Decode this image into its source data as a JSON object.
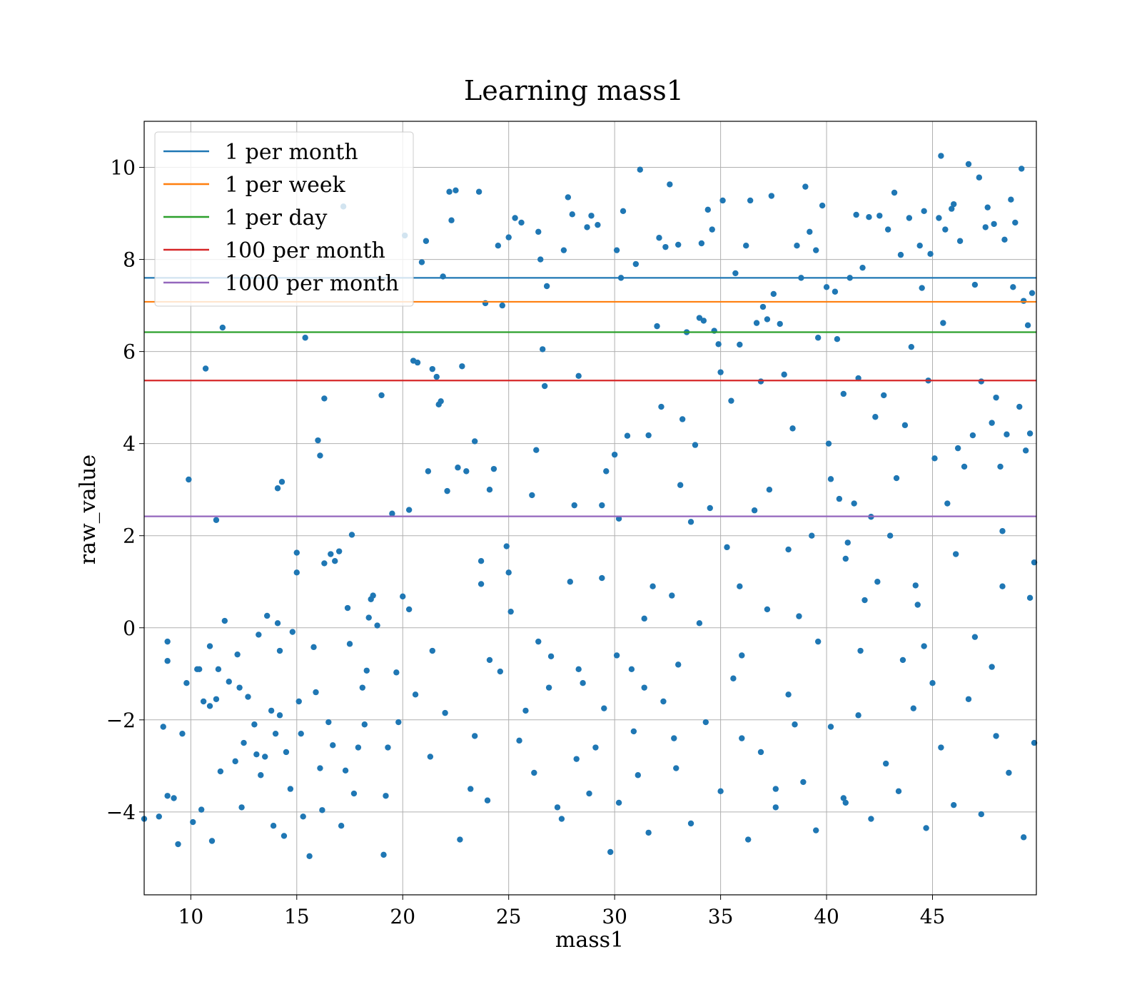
{
  "chart_data": {
    "type": "scatter",
    "title": "Learning mass1",
    "xlabel": "mass1",
    "ylabel": "raw_value",
    "xlim": [
      7.8,
      49.9
    ],
    "ylim": [
      -5.8,
      11.0
    ],
    "xticks": [
      10,
      15,
      20,
      25,
      30,
      35,
      40,
      45
    ],
    "yticks": [
      -4,
      -2,
      0,
      2,
      4,
      6,
      8,
      10
    ],
    "ytick_labels": [
      "−4",
      "−2",
      "0",
      "2",
      "4",
      "6",
      "8",
      "10"
    ],
    "grid": true,
    "legend_position": "upper-left",
    "scatter_color": "#1f77b4",
    "hlines": [
      {
        "name": "1 per month",
        "value": 7.6,
        "color": "#1f77b4"
      },
      {
        "name": "1 per week",
        "value": 7.08,
        "color": "#ff7f0e"
      },
      {
        "name": "1 per day",
        "value": 6.42,
        "color": "#2ca02c"
      },
      {
        "name": "100 per month",
        "value": 5.37,
        "color": "#d62728"
      },
      {
        "name": "1000 per month",
        "value": 2.42,
        "color": "#9467bd"
      }
    ],
    "points": [
      [
        7.8,
        -4.15
      ],
      [
        8.5,
        -4.1
      ],
      [
        8.7,
        -2.15
      ],
      [
        8.9,
        -0.3
      ],
      [
        8.9,
        -0.72
      ],
      [
        8.9,
        -3.65
      ],
      [
        9.2,
        -3.7
      ],
      [
        9.4,
        -4.7
      ],
      [
        9.6,
        -2.3
      ],
      [
        9.8,
        -1.2
      ],
      [
        9.9,
        3.22
      ],
      [
        10.1,
        -4.22
      ],
      [
        10.4,
        -0.9
      ],
      [
        10.5,
        -3.95
      ],
      [
        10.6,
        -1.6
      ],
      [
        10.7,
        5.63
      ],
      [
        10.9,
        -0.4
      ],
      [
        10.9,
        -1.7
      ],
      [
        11.0,
        -4.63
      ],
      [
        11.2,
        2.34
      ],
      [
        11.3,
        -0.9
      ],
      [
        11.4,
        -3.12
      ],
      [
        11.5,
        6.52
      ],
      [
        11.6,
        0.15
      ],
      [
        11.8,
        -1.17
      ],
      [
        12.1,
        -2.9
      ],
      [
        12.2,
        -0.58
      ],
      [
        12.4,
        -3.9
      ],
      [
        12.5,
        -2.5
      ],
      [
        12.7,
        -1.5
      ],
      [
        13.0,
        -2.1
      ],
      [
        13.2,
        -0.15
      ],
      [
        13.3,
        -3.2
      ],
      [
        13.5,
        -2.8
      ],
      [
        13.6,
        0.26
      ],
      [
        13.8,
        -1.8
      ],
      [
        13.9,
        -4.3
      ],
      [
        14.0,
        -2.3
      ],
      [
        14.1,
        3.03
      ],
      [
        14.2,
        -0.5
      ],
      [
        14.3,
        3.17
      ],
      [
        14.4,
        -4.52
      ],
      [
        14.5,
        -2.7
      ],
      [
        14.7,
        -3.5
      ],
      [
        14.8,
        -0.09
      ],
      [
        15.0,
        1.63
      ],
      [
        15.0,
        1.2
      ],
      [
        15.1,
        -1.6
      ],
      [
        15.3,
        -4.1
      ],
      [
        15.4,
        6.3
      ],
      [
        15.6,
        -4.96
      ],
      [
        15.8,
        -0.42
      ],
      [
        15.9,
        -1.4
      ],
      [
        16.0,
        4.07
      ],
      [
        16.1,
        3.74
      ],
      [
        16.2,
        -3.96
      ],
      [
        16.3,
        4.98
      ],
      [
        16.5,
        -2.05
      ],
      [
        16.6,
        1.6
      ],
      [
        16.8,
        1.45
      ],
      [
        17.0,
        1.66
      ],
      [
        17.1,
        -4.3
      ],
      [
        17.2,
        9.15
      ],
      [
        17.4,
        0.43
      ],
      [
        17.5,
        -0.35
      ],
      [
        17.6,
        2.02
      ],
      [
        17.7,
        -3.6
      ],
      [
        17.9,
        -2.6
      ],
      [
        18.1,
        -1.3
      ],
      [
        18.3,
        -0.93
      ],
      [
        18.4,
        0.22
      ],
      [
        18.6,
        0.7
      ],
      [
        18.8,
        0.05
      ],
      [
        19.0,
        5.05
      ],
      [
        19.1,
        -4.93
      ],
      [
        19.3,
        -2.6
      ],
      [
        19.5,
        2.48
      ],
      [
        19.7,
        -0.97
      ],
      [
        20.0,
        0.68
      ],
      [
        20.1,
        8.52
      ],
      [
        20.3,
        0.4
      ],
      [
        20.3,
        2.56
      ],
      [
        20.5,
        5.8
      ],
      [
        20.7,
        5.76
      ],
      [
        20.9,
        7.94
      ],
      [
        21.1,
        8.4
      ],
      [
        21.2,
        3.4
      ],
      [
        21.4,
        5.62
      ],
      [
        21.6,
        5.45
      ],
      [
        21.7,
        4.85
      ],
      [
        21.8,
        4.92
      ],
      [
        21.9,
        7.63
      ],
      [
        22.1,
        2.97
      ],
      [
        22.2,
        9.47
      ],
      [
        22.3,
        8.85
      ],
      [
        22.5,
        9.5
      ],
      [
        22.6,
        3.48
      ],
      [
        22.8,
        5.68
      ],
      [
        23.0,
        3.4
      ],
      [
        23.2,
        -3.5
      ],
      [
        23.4,
        4.05
      ],
      [
        23.6,
        9.47
      ],
      [
        23.7,
        1.45
      ],
      [
        23.9,
        7.05
      ],
      [
        24.1,
        3.0
      ],
      [
        24.3,
        3.45
      ],
      [
        24.5,
        8.3
      ],
      [
        24.7,
        7.0
      ],
      [
        24.9,
        1.77
      ],
      [
        25.0,
        8.48
      ],
      [
        25.1,
        0.35
      ],
      [
        25.3,
        8.9
      ],
      [
        25.6,
        8.8
      ],
      [
        25.8,
        -1.8
      ],
      [
        26.1,
        2.88
      ],
      [
        26.3,
        3.86
      ],
      [
        26.4,
        8.6
      ],
      [
        26.5,
        8.0
      ],
      [
        26.6,
        6.05
      ],
      [
        26.7,
        5.25
      ],
      [
        26.8,
        7.42
      ],
      [
        27.0,
        -0.62
      ],
      [
        27.3,
        -3.9
      ],
      [
        27.6,
        8.2
      ],
      [
        27.8,
        9.35
      ],
      [
        28.0,
        8.98
      ],
      [
        28.1,
        2.66
      ],
      [
        28.3,
        5.47
      ],
      [
        28.5,
        -1.2
      ],
      [
        28.7,
        8.7
      ],
      [
        28.9,
        8.95
      ],
      [
        29.1,
        -2.6
      ],
      [
        29.2,
        8.75
      ],
      [
        29.4,
        2.66
      ],
      [
        29.6,
        3.4
      ],
      [
        29.8,
        -4.87
      ],
      [
        30.0,
        3.76
      ],
      [
        30.1,
        8.2
      ],
      [
        30.2,
        2.37
      ],
      [
        30.3,
        7.6
      ],
      [
        30.4,
        9.05
      ],
      [
        30.6,
        4.17
      ],
      [
        30.8,
        -0.9
      ],
      [
        31.0,
        7.9
      ],
      [
        31.1,
        -3.2
      ],
      [
        31.2,
        9.95
      ],
      [
        31.4,
        -1.3
      ],
      [
        31.6,
        4.18
      ],
      [
        31.8,
        0.9
      ],
      [
        32.0,
        6.55
      ],
      [
        32.1,
        8.47
      ],
      [
        32.2,
        4.8
      ],
      [
        32.4,
        8.27
      ],
      [
        32.6,
        9.63
      ],
      [
        32.8,
        -2.4
      ],
      [
        33.0,
        8.32
      ],
      [
        33.1,
        3.1
      ],
      [
        33.2,
        4.53
      ],
      [
        33.4,
        6.42
      ],
      [
        33.6,
        2.3
      ],
      [
        33.8,
        3.97
      ],
      [
        34.0,
        6.73
      ],
      [
        34.1,
        8.35
      ],
      [
        34.2,
        6.67
      ],
      [
        34.4,
        9.08
      ],
      [
        34.5,
        2.6
      ],
      [
        34.6,
        8.65
      ],
      [
        34.7,
        6.45
      ],
      [
        34.9,
        6.16
      ],
      [
        35.0,
        5.55
      ],
      [
        35.1,
        9.28
      ],
      [
        35.3,
        1.75
      ],
      [
        35.5,
        4.93
      ],
      [
        35.7,
        7.7
      ],
      [
        35.9,
        6.15
      ],
      [
        36.0,
        -2.4
      ],
      [
        36.2,
        8.3
      ],
      [
        36.4,
        9.28
      ],
      [
        36.6,
        2.55
      ],
      [
        36.7,
        6.62
      ],
      [
        36.9,
        5.35
      ],
      [
        37.0,
        6.97
      ],
      [
        37.2,
        6.7
      ],
      [
        37.3,
        3.0
      ],
      [
        37.4,
        9.38
      ],
      [
        37.5,
        7.25
      ],
      [
        37.6,
        -3.5
      ],
      [
        37.8,
        6.6
      ],
      [
        38.0,
        5.5
      ],
      [
        38.2,
        1.7
      ],
      [
        38.4,
        4.33
      ],
      [
        38.5,
        -2.1
      ],
      [
        38.6,
        8.3
      ],
      [
        38.8,
        7.6
      ],
      [
        39.0,
        9.58
      ],
      [
        39.2,
        8.6
      ],
      [
        39.3,
        2.0
      ],
      [
        39.5,
        8.2
      ],
      [
        39.6,
        6.3
      ],
      [
        39.8,
        9.17
      ],
      [
        40.0,
        7.4
      ],
      [
        40.1,
        4.0
      ],
      [
        40.2,
        3.23
      ],
      [
        40.4,
        7.3
      ],
      [
        40.5,
        6.27
      ],
      [
        40.6,
        2.8
      ],
      [
        40.8,
        5.08
      ],
      [
        40.9,
        -3.8
      ],
      [
        41.0,
        1.85
      ],
      [
        41.1,
        7.6
      ],
      [
        41.3,
        2.7
      ],
      [
        41.4,
        8.97
      ],
      [
        41.5,
        5.42
      ],
      [
        41.7,
        7.82
      ],
      [
        41.8,
        0.6
      ],
      [
        42.0,
        8.92
      ],
      [
        42.1,
        2.41
      ],
      [
        42.3,
        4.58
      ],
      [
        42.5,
        8.95
      ],
      [
        42.7,
        5.05
      ],
      [
        42.9,
        8.65
      ],
      [
        43.0,
        2.0
      ],
      [
        43.2,
        9.45
      ],
      [
        43.3,
        3.25
      ],
      [
        43.5,
        8.1
      ],
      [
        43.7,
        4.4
      ],
      [
        43.9,
        8.9
      ],
      [
        44.0,
        6.1
      ],
      [
        44.2,
        0.92
      ],
      [
        44.4,
        8.3
      ],
      [
        44.5,
        7.38
      ],
      [
        44.6,
        9.05
      ],
      [
        44.8,
        5.37
      ],
      [
        44.9,
        8.12
      ],
      [
        45.1,
        3.68
      ],
      [
        45.3,
        8.9
      ],
      [
        45.4,
        10.25
      ],
      [
        45.5,
        6.62
      ],
      [
        45.6,
        8.65
      ],
      [
        45.7,
        2.7
      ],
      [
        45.9,
        9.1
      ],
      [
        46.0,
        9.2
      ],
      [
        46.2,
        3.9
      ],
      [
        46.3,
        8.4
      ],
      [
        46.5,
        3.5
      ],
      [
        46.7,
        10.07
      ],
      [
        46.9,
        4.18
      ],
      [
        47.0,
        7.45
      ],
      [
        47.2,
        9.78
      ],
      [
        47.3,
        5.35
      ],
      [
        47.5,
        8.7
      ],
      [
        47.6,
        9.13
      ],
      [
        47.8,
        4.45
      ],
      [
        47.9,
        8.77
      ],
      [
        48.0,
        5.0
      ],
      [
        48.2,
        3.5
      ],
      [
        48.3,
        2.1
      ],
      [
        48.4,
        8.43
      ],
      [
        48.5,
        4.2
      ],
      [
        48.7,
        9.3
      ],
      [
        48.8,
        7.4
      ],
      [
        48.9,
        8.8
      ],
      [
        49.1,
        4.8
      ],
      [
        49.2,
        9.97
      ],
      [
        49.3,
        7.1
      ],
      [
        49.4,
        3.85
      ],
      [
        49.5,
        6.57
      ],
      [
        49.6,
        4.22
      ],
      [
        49.7,
        7.27
      ],
      [
        49.8,
        1.42
      ],
      [
        10.3,
        -0.9
      ],
      [
        11.2,
        -1.55
      ],
      [
        12.3,
        -1.3
      ],
      [
        13.1,
        -2.75
      ],
      [
        14.2,
        -1.9
      ],
      [
        15.2,
        -2.3
      ],
      [
        16.1,
        -3.05
      ],
      [
        16.7,
        -2.55
      ],
      [
        17.3,
        -3.1
      ],
      [
        18.2,
        -2.1
      ],
      [
        19.2,
        -3.65
      ],
      [
        19.8,
        -2.05
      ],
      [
        20.6,
        -1.45
      ],
      [
        21.3,
        -2.8
      ],
      [
        22.0,
        -1.85
      ],
      [
        22.7,
        -4.6
      ],
      [
        23.4,
        -2.35
      ],
      [
        24.0,
        -3.75
      ],
      [
        24.6,
        -0.95
      ],
      [
        25.5,
        -2.45
      ],
      [
        26.2,
        -3.15
      ],
      [
        26.9,
        -1.3
      ],
      [
        27.5,
        -4.15
      ],
      [
        28.2,
        -2.85
      ],
      [
        28.8,
        -3.6
      ],
      [
        29.5,
        -1.75
      ],
      [
        30.2,
        -3.8
      ],
      [
        30.9,
        -2.25
      ],
      [
        31.6,
        -4.45
      ],
      [
        32.3,
        -1.6
      ],
      [
        32.9,
        -3.05
      ],
      [
        33.6,
        -4.25
      ],
      [
        34.3,
        -2.05
      ],
      [
        35.0,
        -3.55
      ],
      [
        35.6,
        -1.1
      ],
      [
        36.3,
        -4.6
      ],
      [
        36.9,
        -2.7
      ],
      [
        37.6,
        -3.9
      ],
      [
        38.2,
        -1.45
      ],
      [
        38.9,
        -3.35
      ],
      [
        39.5,
        -4.4
      ],
      [
        40.2,
        -2.15
      ],
      [
        40.8,
        -3.7
      ],
      [
        41.5,
        -1.9
      ],
      [
        42.1,
        -4.15
      ],
      [
        42.8,
        -2.95
      ],
      [
        43.4,
        -3.55
      ],
      [
        44.1,
        -1.75
      ],
      [
        44.7,
        -4.35
      ],
      [
        45.4,
        -2.6
      ],
      [
        46.0,
        -3.85
      ],
      [
        46.7,
        -1.55
      ],
      [
        47.3,
        -4.05
      ],
      [
        48.0,
        -2.35
      ],
      [
        48.6,
        -3.15
      ],
      [
        49.3,
        -4.55
      ],
      [
        49.8,
        -2.5
      ],
      [
        43.6,
        -0.7
      ],
      [
        45.0,
        -1.2
      ],
      [
        47.8,
        -0.85
      ],
      [
        25.0,
        1.2
      ],
      [
        27.9,
        1.0
      ],
      [
        29.4,
        1.08
      ],
      [
        31.4,
        0.2
      ],
      [
        32.7,
        0.7
      ],
      [
        34.0,
        0.1
      ],
      [
        35.9,
        0.9
      ],
      [
        37.2,
        0.4
      ],
      [
        38.7,
        0.25
      ],
      [
        40.9,
        1.5
      ],
      [
        42.4,
        1.0
      ],
      [
        44.3,
        0.5
      ],
      [
        46.1,
        1.6
      ],
      [
        48.3,
        0.9
      ],
      [
        49.6,
        0.65
      ],
      [
        18.5,
        0.62
      ],
      [
        16.3,
        1.4
      ],
      [
        14.1,
        0.1
      ],
      [
        21.4,
        -0.5
      ],
      [
        23.7,
        0.95
      ],
      [
        39.6,
        -0.3
      ],
      [
        41.6,
        -0.5
      ],
      [
        36.0,
        -0.6
      ],
      [
        33.0,
        -0.8
      ],
      [
        30.1,
        -0.6
      ],
      [
        28.3,
        -0.9
      ],
      [
        26.4,
        -0.3
      ],
      [
        24.1,
        -0.7
      ],
      [
        44.6,
        -0.4
      ],
      [
        47.0,
        -0.2
      ]
    ]
  }
}
